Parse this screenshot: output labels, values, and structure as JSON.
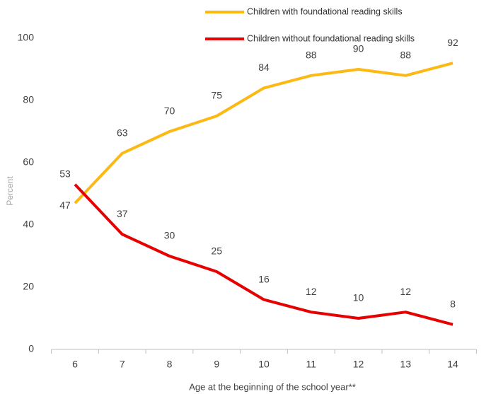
{
  "chart_data": {
    "type": "line",
    "x_label": "Age at the beginning of the school year**",
    "y_label": "Percent",
    "categories": [
      "6",
      "7",
      "8",
      "9",
      "10",
      "11",
      "12",
      "13",
      "14"
    ],
    "series": [
      {
        "name": "Children with foundational reading skills",
        "color": "#fdb913",
        "values": [
          47,
          63,
          70,
          75,
          84,
          88,
          90,
          88,
          92
        ]
      },
      {
        "name": "Children without foundational reading skills",
        "color": "#e60000",
        "values": [
          53,
          37,
          30,
          25,
          16,
          12,
          10,
          12,
          8
        ]
      }
    ],
    "ylim": [
      0,
      100
    ],
    "yticks": [
      0,
      20,
      40,
      60,
      80,
      100
    ],
    "grid": false,
    "legend": "top"
  }
}
